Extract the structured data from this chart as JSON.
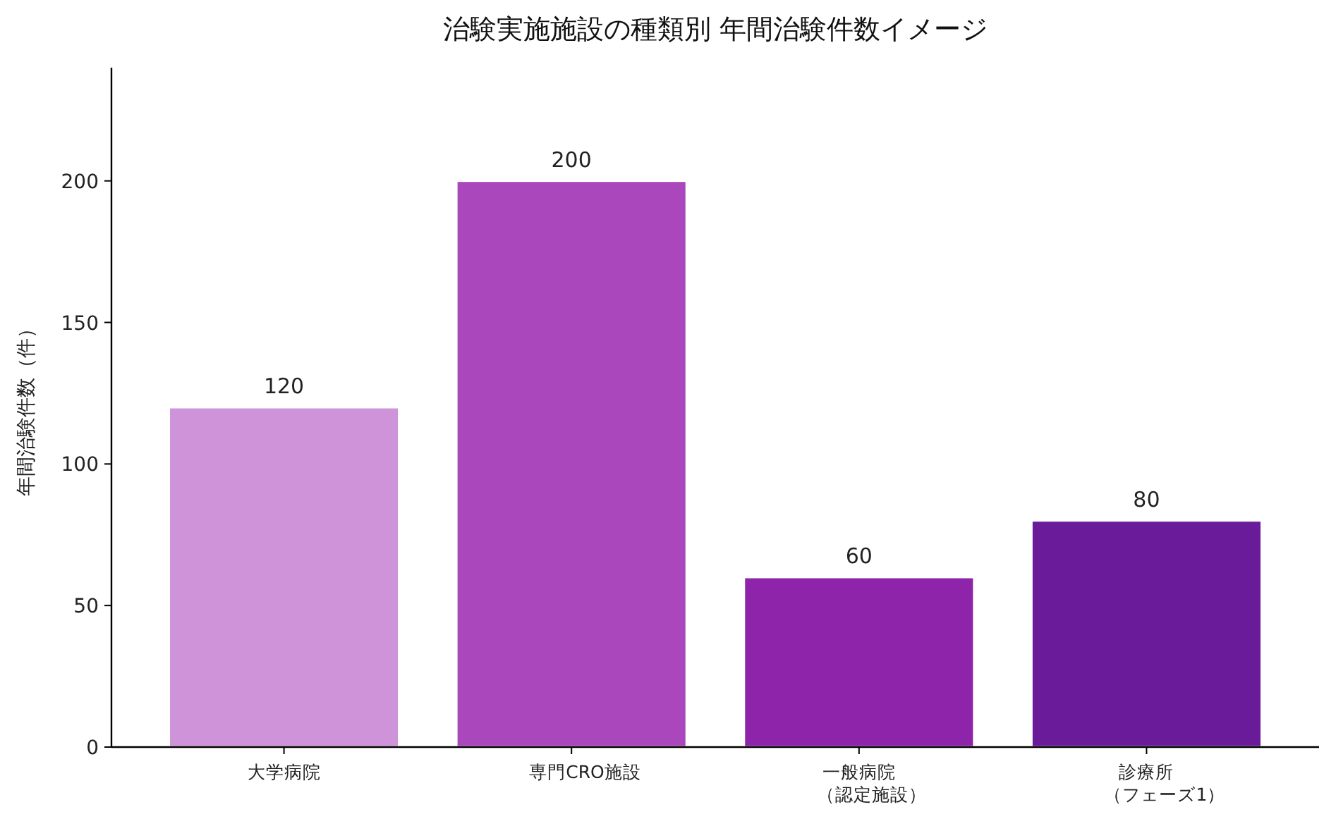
{
  "chart_data": {
    "type": "bar",
    "title": "治験実施施設の種類別 年間治験件数イメージ",
    "ylabel": "年間治験件数（件）",
    "categories": [
      "大学病院",
      "専門CRO施設",
      "一般病院（認定施設）",
      "診療所（フェーズ1）"
    ],
    "values": [
      120,
      200,
      60,
      80
    ],
    "colors": [
      "#ce93d8",
      "#ab47bc",
      "#8e24aa",
      "#6a1b9a"
    ],
    "ylim": [
      0,
      240
    ],
    "yticks": [
      0,
      50,
      100,
      150,
      200
    ],
    "data_labels": true,
    "grid": false
  }
}
